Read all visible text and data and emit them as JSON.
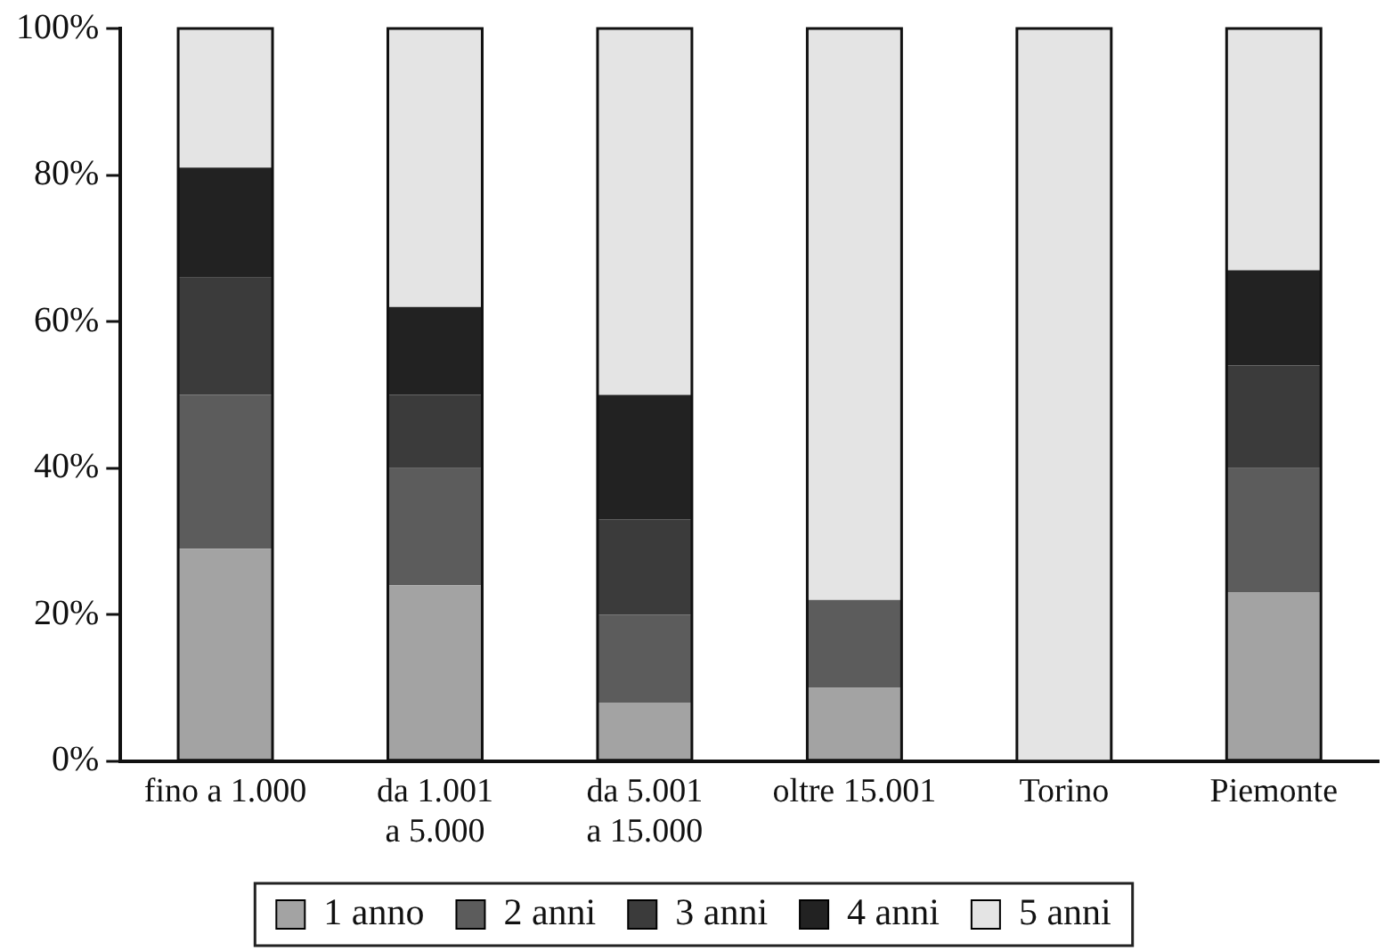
{
  "chart_data": {
    "type": "bar",
    "stacked": true,
    "categories": [
      "fino a 1.000",
      "da 1.001\na 5.000",
      "da 5.001\na 15.000",
      "oltre 15.001",
      "Torino",
      "Piemonte"
    ],
    "series": [
      {
        "name": "1 anno",
        "color": "#a3a3a3",
        "values": [
          29,
          24,
          8,
          10,
          0,
          23
        ]
      },
      {
        "name": "2 anni",
        "color": "#5c5c5c",
        "values": [
          21,
          16,
          12,
          12,
          0,
          17
        ]
      },
      {
        "name": "3 anni",
        "color": "#3b3b3b",
        "values": [
          16,
          10,
          13,
          0,
          0,
          14
        ]
      },
      {
        "name": "4 anni",
        "color": "#222222",
        "values": [
          15,
          12,
          17,
          0,
          0,
          13
        ]
      },
      {
        "name": "5 anni",
        "color": "#e4e4e4",
        "values": [
          19,
          38,
          50,
          78,
          100,
          33
        ]
      }
    ],
    "ylim": [
      0,
      100
    ],
    "yticks": [
      {
        "value": 0,
        "label": "0%"
      },
      {
        "value": 20,
        "label": "20%"
      },
      {
        "value": 40,
        "label": "40%"
      },
      {
        "value": 60,
        "label": "60%"
      },
      {
        "value": 80,
        "label": "80%"
      },
      {
        "value": 100,
        "label": "100%"
      }
    ],
    "grid": false,
    "legend": "bottom"
  }
}
